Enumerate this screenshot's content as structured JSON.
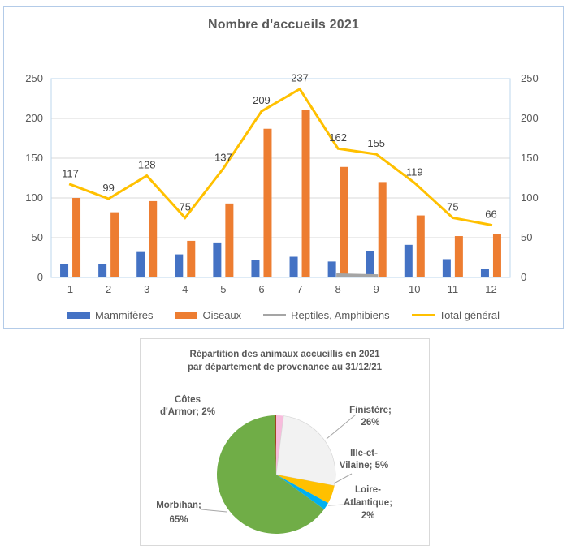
{
  "chart_data": [
    {
      "type": "combo-bar-line",
      "title": "Nombre d'accueils 2021",
      "categories": [
        "1",
        "2",
        "3",
        "4",
        "5",
        "6",
        "7",
        "8",
        "9",
        "10",
        "11",
        "12"
      ],
      "series": [
        {
          "name": "Mammifères",
          "kind": "bar",
          "color": "#4472c4",
          "values": [
            17,
            17,
            32,
            29,
            44,
            22,
            26,
            20,
            33,
            41,
            23,
            11
          ]
        },
        {
          "name": "Oiseaux",
          "kind": "bar",
          "color": "#ed7d31",
          "values": [
            100,
            82,
            96,
            46,
            93,
            187,
            211,
            139,
            120,
            78,
            52,
            55
          ]
        },
        {
          "name": "Reptiles, Amphibiens",
          "kind": "line",
          "color": "#a5a5a5",
          "values": [
            null,
            null,
            null,
            null,
            null,
            null,
            null,
            3,
            2,
            null,
            null,
            null
          ]
        },
        {
          "name": "Total général",
          "kind": "line",
          "color": "#ffc000",
          "data_labels": true,
          "values": [
            117,
            99,
            128,
            75,
            137,
            209,
            237,
            162,
            155,
            119,
            75,
            66
          ]
        }
      ],
      "ylim": [
        0,
        250
      ],
      "yticks": [
        0,
        50,
        100,
        150,
        200,
        250
      ],
      "secondary_yticks": [
        0,
        50,
        100,
        150,
        200,
        250
      ],
      "grid": true,
      "legend_position": "bottom",
      "colors": {
        "axis_text": "#595959",
        "data_label_text": "#404040",
        "gridline": "#d9d9d9",
        "plot_border": "#bdd7ee",
        "frame_border": "#b3cbe8"
      }
    },
    {
      "type": "pie",
      "title_lines": [
        "Répartition des animaux accueillis en 2021",
        "par département de provenance au 31/12/21"
      ],
      "slices": [
        {
          "name": "Côtes d'Armor",
          "pct": 2,
          "color": "#f7bcdc",
          "label_lines": [
            "Côtes",
            "d'Armor; 2%"
          ]
        },
        {
          "name": "Finistère",
          "pct": 26,
          "color": "#f2f2f2",
          "label_lines": [
            "Finistère;",
            "26%"
          ]
        },
        {
          "name": "Ille-et-Vilaine",
          "pct": 5,
          "color": "#ffc000",
          "label_lines": [
            "Ille-et-",
            "Vilaine; 5%"
          ]
        },
        {
          "name": "Loire-Atlantique",
          "pct": 2,
          "color": "#00b0f0",
          "label_lines": [
            "Loire-",
            "Atlantique;",
            "2%"
          ]
        },
        {
          "name": "Morbihan",
          "pct": 64.6,
          "color": "#70ad47",
          "label_lines": [
            "Morbihan;",
            "65%"
          ]
        },
        {
          "name": "",
          "pct": 0.4,
          "color": "#9c4720",
          "label_lines": []
        }
      ],
      "colors": {
        "title_text": "#595959",
        "label_text": "#595959",
        "leader_line": "#a6a6a6",
        "frame_border": "#d9d9d9"
      }
    }
  ]
}
